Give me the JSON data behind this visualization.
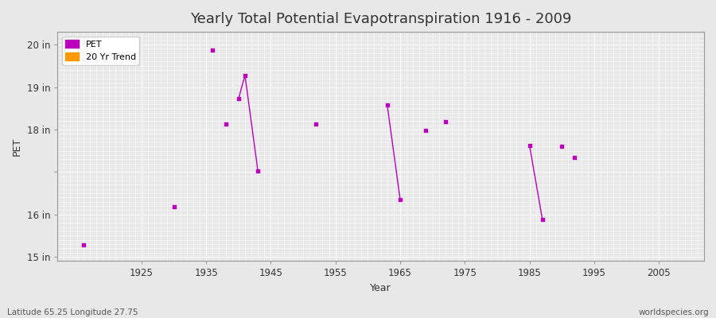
{
  "title": "Yearly Total Potential Evapotranspiration 1916 - 2009",
  "xlabel": "Year",
  "ylabel": "PET",
  "xlim": [
    1912,
    2012
  ],
  "ylim": [
    14.9,
    20.3
  ],
  "yticks": [
    15,
    16,
    17,
    18,
    19,
    20
  ],
  "ytick_labels": [
    "15 in",
    "16 in",
    "",
    "18 in",
    "19 in",
    "20 in"
  ],
  "xticks": [
    1925,
    1935,
    1945,
    1955,
    1965,
    1975,
    1985,
    1995,
    2005
  ],
  "bg_color": "#e8e8e8",
  "plot_bg_color": "#e8e8e8",
  "grid_color": "#ffffff",
  "pet_color": "#bb00bb",
  "trend_color": "#ff9900",
  "pet_points": [
    [
      1916,
      15.28
    ],
    [
      1930,
      16.18
    ],
    [
      1938,
      18.13
    ],
    [
      1940,
      18.72
    ],
    [
      1941,
      19.28
    ],
    [
      1943,
      17.02
    ],
    [
      1936,
      19.87
    ],
    [
      1952,
      18.13
    ],
    [
      1963,
      18.58
    ],
    [
      1965,
      16.35
    ],
    [
      1969,
      17.98
    ],
    [
      1972,
      18.18
    ],
    [
      1985,
      17.63
    ],
    [
      1987,
      15.88
    ],
    [
      1990,
      17.6
    ],
    [
      1992,
      17.35
    ]
  ],
  "pet_lines": [
    [
      [
        1940,
        18.72
      ],
      [
        1941,
        19.28
      ],
      [
        1943,
        17.02
      ]
    ],
    [
      [
        1963,
        18.58
      ],
      [
        1965,
        16.35
      ]
    ],
    [
      [
        1985,
        17.63
      ],
      [
        1987,
        15.88
      ]
    ]
  ],
  "footnote_left": "Latitude 65.25 Longitude 27.75",
  "footnote_right": "worldspecies.org"
}
